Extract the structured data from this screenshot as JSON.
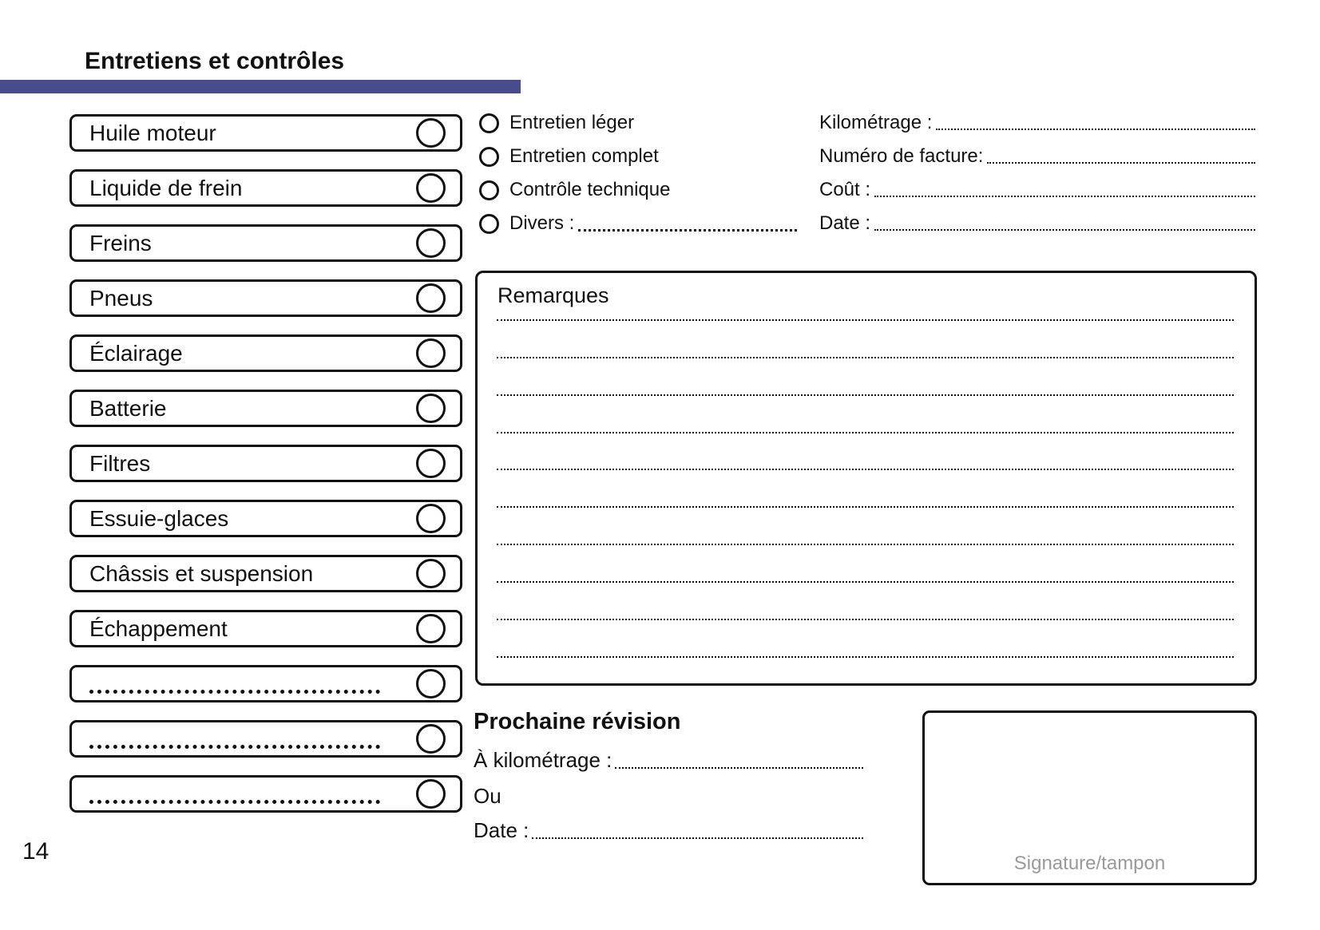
{
  "page": {
    "title": "Entretiens et contrôles",
    "page_number": "14",
    "accent_color": "#474d8c"
  },
  "checklist": {
    "items": [
      {
        "label": "Huile moteur",
        "blank": false
      },
      {
        "label": "Liquide de frein",
        "blank": false
      },
      {
        "label": "Freins",
        "blank": false
      },
      {
        "label": "Pneus",
        "blank": false
      },
      {
        "label": "Éclairage",
        "blank": false
      },
      {
        "label": "Batterie",
        "blank": false
      },
      {
        "label": "Filtres",
        "blank": false
      },
      {
        "label": "Essuie-glaces",
        "blank": false
      },
      {
        "label": "Châssis et suspension",
        "blank": false
      },
      {
        "label": "Échappement",
        "blank": false
      },
      {
        "label": "",
        "blank": true
      },
      {
        "label": "",
        "blank": true
      },
      {
        "label": "",
        "blank": true
      }
    ]
  },
  "service": {
    "options": [
      {
        "label": "Entretien léger",
        "dotted": false
      },
      {
        "label": "Entretien complet",
        "dotted": false
      },
      {
        "label": "Contrôle technique",
        "dotted": false
      },
      {
        "label": "Divers :",
        "dotted": true
      }
    ]
  },
  "invoice": {
    "fields": [
      {
        "label": "Kilométrage :"
      },
      {
        "label": "Numéro de facture:"
      },
      {
        "label": "Coût :"
      },
      {
        "label": "Date :"
      }
    ]
  },
  "remarks": {
    "title": "Remarques",
    "lines": [
      "",
      "",
      "",
      "",
      "",
      "",
      "",
      "",
      "",
      ""
    ]
  },
  "next_service": {
    "title": "Prochaine révision",
    "km_label": "À kilométrage :",
    "or_label": "Ou",
    "date_label": "Date :"
  },
  "signature": {
    "label": "Signature/tampon"
  }
}
